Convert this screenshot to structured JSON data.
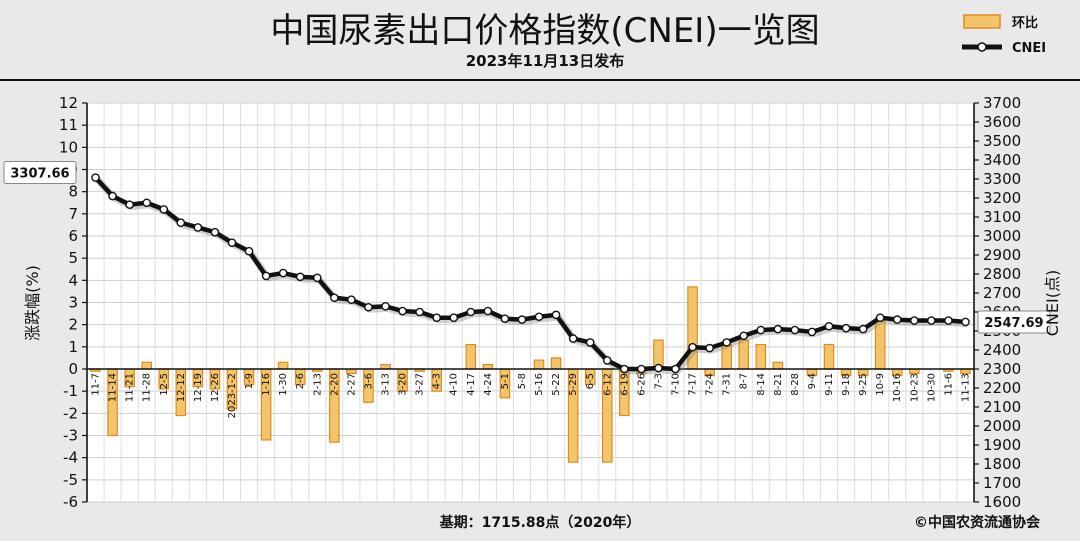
{
  "title": "中国尿素出口价格指数(CNEI)一览图",
  "subtitle": "2023年11月13日发布",
  "legend": {
    "bar_label": "环比",
    "line_label": "CNEI"
  },
  "footer": {
    "base": "基期：1715.88点（2020年）",
    "copyright": "©中国农资流通协会"
  },
  "colors": {
    "bar_fill": "#f3c56a",
    "bar_edge": "#e08a1e",
    "line": "#111111",
    "marker": "#ffffff",
    "plot_bg": "#ffffff",
    "frame_bg": "#e9e9e9"
  },
  "chart_data": {
    "type": "bar+line",
    "title": "中国尿素出口价格指数(CNEI)一览图",
    "ylabel_left": "涨跌幅(%)",
    "ylabel_right": "CNEI(点)",
    "ylim_left": [
      -6,
      12
    ],
    "ylim_right": [
      1600,
      3700
    ],
    "yticks_left": [
      -6,
      -5,
      -4,
      -3,
      -2,
      -1,
      0,
      1,
      2,
      3,
      4,
      5,
      6,
      7,
      8,
      9,
      10,
      11,
      12
    ],
    "yticks_right": [
      1600,
      1700,
      1800,
      1900,
      2000,
      2100,
      2200,
      2300,
      2400,
      2500,
      2600,
      2700,
      2800,
      2900,
      3000,
      3100,
      3200,
      3300,
      3400,
      3500,
      3600,
      3700
    ],
    "grid": true,
    "legend_position": "top-right",
    "categories": [
      "11-7",
      "11-14",
      "11-21",
      "11-28",
      "12-5",
      "12-12",
      "12-19",
      "12-26",
      "2023-1-2",
      "1-9",
      "1-16",
      "1-30",
      "2-6",
      "2-13",
      "2-20",
      "2-27",
      "3-6",
      "3-13",
      "3-20",
      "3-27",
      "4-3",
      "4-10",
      "4-17",
      "4-24",
      "5-1",
      "5-8",
      "5-16",
      "5-22",
      "5-29",
      "6-5",
      "6-12",
      "6-19",
      "6-26",
      "7-3",
      "7-10",
      "7-17",
      "7-24",
      "7-31",
      "8-7",
      "8-14",
      "8-21",
      "8-28",
      "9-4",
      "9-11",
      "9-18",
      "9-25",
      "10-9",
      "10-16",
      "10-23",
      "10-30",
      "11-6",
      "11-13"
    ],
    "series": [
      {
        "name": "环比",
        "type": "bar",
        "axis": "left",
        "values": [
          -0.1,
          -3.0,
          -0.8,
          0.3,
          -0.9,
          -2.1,
          -0.8,
          -0.9,
          -1.8,
          -0.7,
          -3.2,
          0.3,
          -0.7,
          -0.1,
          -3.3,
          -0.2,
          -1.5,
          0.2,
          -1.0,
          -0.1,
          -1.0,
          0.0,
          1.1,
          0.2,
          -1.3,
          0.0,
          0.4,
          0.5,
          -4.2,
          -0.7,
          -4.2,
          -2.1,
          -0.2,
          1.3,
          0.1,
          3.7,
          -0.3,
          1.1,
          1.3,
          1.1,
          0.3,
          0.0,
          -0.3,
          1.1,
          -0.3,
          -0.3,
          2.3,
          -0.3,
          -0.2,
          0.0,
          -0.1,
          -0.2
        ]
      },
      {
        "name": "CNEI",
        "type": "line",
        "axis": "right",
        "values": [
          3307.66,
          3210,
          3165,
          3175,
          3140,
          3070,
          3045,
          3020,
          2965,
          2920,
          2790,
          2805,
          2785,
          2780,
          2675,
          2665,
          2625,
          2630,
          2605,
          2600,
          2570,
          2570,
          2600,
          2605,
          2565,
          2560,
          2575,
          2585,
          2460,
          2440,
          2345,
          2300,
          2300,
          2305,
          2300,
          2415,
          2410,
          2440,
          2475,
          2505,
          2510,
          2505,
          2495,
          2525,
          2515,
          2510,
          2570,
          2560,
          2555,
          2555,
          2555,
          2547.69
        ],
        "labels": [
          {
            "index": 0,
            "text": "3307.66"
          },
          {
            "index": 51,
            "text": "2547.69"
          }
        ]
      }
    ]
  }
}
